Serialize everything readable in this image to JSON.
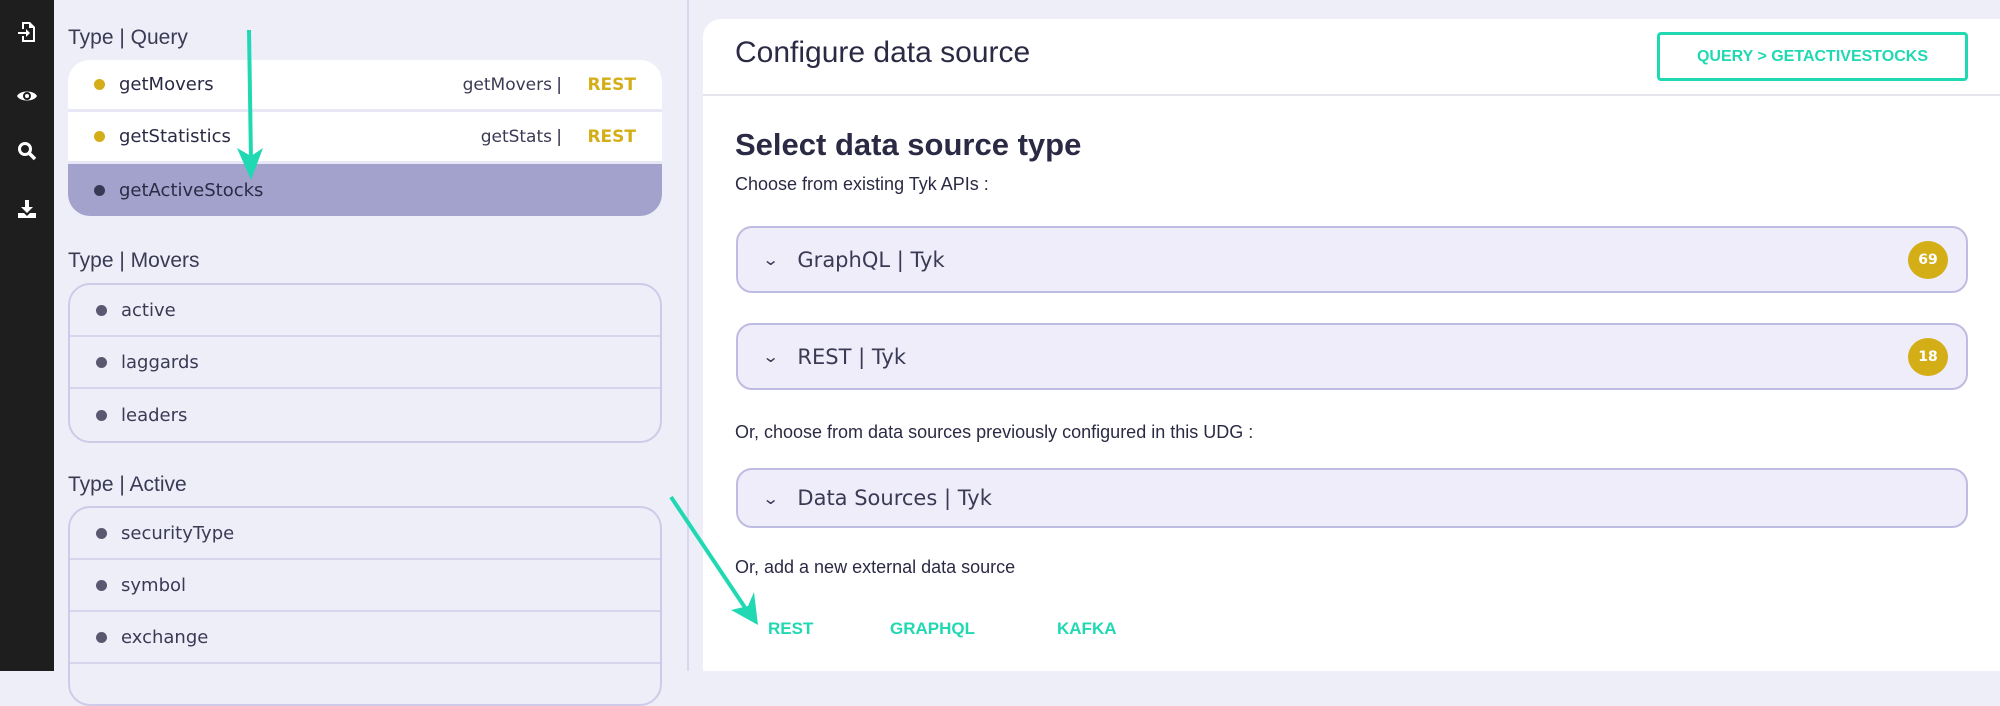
{
  "rail": {
    "icons": [
      "import-icon",
      "eye-icon",
      "search-icon",
      "download-icon"
    ]
  },
  "left": {
    "groups": [
      {
        "title": "Type | Query",
        "items": [
          {
            "name": "getMovers",
            "resolver": "getMovers",
            "sep": "|",
            "type": "REST"
          },
          {
            "name": "getStatistics",
            "resolver": "getStats",
            "sep": "|",
            "type": "REST"
          },
          {
            "name": "getActiveStocks",
            "selected": true
          }
        ]
      },
      {
        "title": "Type | Movers",
        "items": [
          {
            "name": "active"
          },
          {
            "name": "laggards"
          },
          {
            "name": "leaders"
          }
        ]
      },
      {
        "title": "Type | Active",
        "items": [
          {
            "name": "securityType"
          },
          {
            "name": "symbol"
          },
          {
            "name": "exchange"
          }
        ]
      }
    ]
  },
  "main": {
    "title": "Configure data source",
    "breadcrumb": "QUERY > GETACTIVESTOCKS",
    "section_title": "Select data source type",
    "existing_label": "Choose from existing Tyk APIs :",
    "accordions": [
      {
        "label": "GraphQL | Tyk",
        "count": "69"
      },
      {
        "label": "REST | Tyk",
        "count": "18"
      },
      {
        "label": "Data Sources | Tyk"
      }
    ],
    "previous_label": "Or, choose from data sources previously configured in this UDG :",
    "new_label": "Or, add a new external data source",
    "links": [
      "REST",
      "GRAPHQL",
      "KAFKA"
    ]
  },
  "colors": {
    "accent": "#20d9b3",
    "gold": "#d4ae17",
    "selected": "#a3a2cc",
    "panel": "#eeeef9"
  }
}
